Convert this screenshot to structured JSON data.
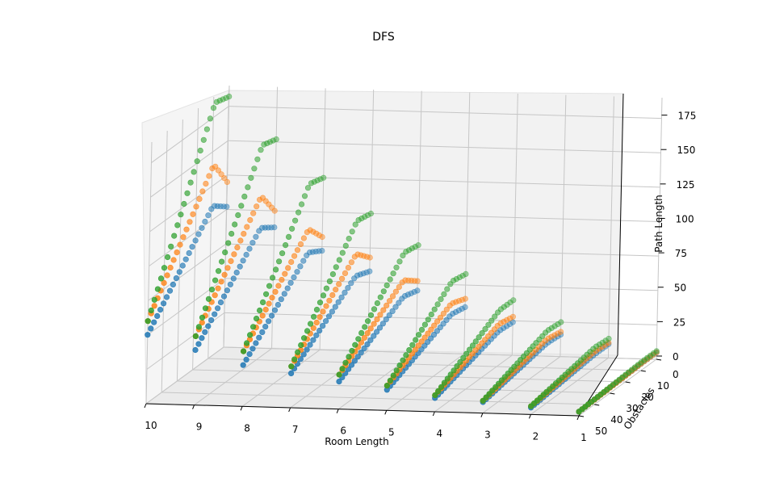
{
  "chart_data": {
    "type": "scatter3d",
    "title": "DFS",
    "xlabel": "Room Length",
    "ylabel": "Obstacles",
    "zlabel": "Path Length",
    "x_ticks": [
      "10",
      "9",
      "8",
      "7",
      "6",
      "5",
      "4",
      "3",
      "2",
      "1"
    ],
    "y_ticks": [
      "0",
      "10",
      "20",
      "30",
      "40",
      "50"
    ],
    "z_ticks": [
      "0",
      "25",
      "50",
      "75",
      "100",
      "125",
      "150",
      "175"
    ],
    "xlim": [
      1,
      10
    ],
    "ylim": [
      0,
      50
    ],
    "zlim": [
      0,
      190
    ],
    "grid": true,
    "colors": [
      "#1f77b4",
      "#ff7f0e",
      "#2ca02c"
    ],
    "series": [
      {
        "groups": [
          {
            "x": 10,
            "z_start": 50,
            "z_peak": 110,
            "z_end": 102
          },
          {
            "x": 9,
            "z_start": 40,
            "z_peak": 95,
            "z_end": 88
          },
          {
            "x": 8,
            "z_start": 30,
            "z_peak": 78,
            "z_end": 72
          },
          {
            "x": 7,
            "z_start": 25,
            "z_peak": 62,
            "z_end": 58
          },
          {
            "x": 6,
            "z_start": 20,
            "z_peak": 48,
            "z_end": 45
          },
          {
            "x": 5,
            "z_start": 15,
            "z_peak": 36,
            "z_end": 34
          },
          {
            "x": 4,
            "z_start": 10,
            "z_peak": 25,
            "z_end": 24
          },
          {
            "x": 3,
            "z_start": 8,
            "z_peak": 17,
            "z_end": 16
          },
          {
            "x": 2,
            "z_start": 5,
            "z_peak": 10,
            "z_end": 10
          },
          {
            "x": 1,
            "z_start": 3,
            "z_peak": 5,
            "z_end": 5
          }
        ]
      },
      {
        "groups": [
          {
            "x": 10,
            "z_start": 60,
            "z_peak": 140,
            "z_end": 120
          },
          {
            "x": 9,
            "z_start": 50,
            "z_peak": 118,
            "z_end": 100
          },
          {
            "x": 8,
            "z_start": 40,
            "z_peak": 95,
            "z_end": 82
          },
          {
            "x": 7,
            "z_start": 30,
            "z_peak": 78,
            "z_end": 68
          },
          {
            "x": 6,
            "z_start": 25,
            "z_peak": 60,
            "z_end": 52
          },
          {
            "x": 5,
            "z_start": 18,
            "z_peak": 44,
            "z_end": 40
          },
          {
            "x": 4,
            "z_start": 12,
            "z_peak": 30,
            "z_end": 28
          },
          {
            "x": 3,
            "z_start": 9,
            "z_peak": 20,
            "z_end": 18
          },
          {
            "x": 2,
            "z_start": 6,
            "z_peak": 12,
            "z_end": 11
          },
          {
            "x": 1,
            "z_start": 3,
            "z_peak": 5,
            "z_end": 5
          }
        ]
      },
      {
        "groups": [
          {
            "x": 10,
            "z_start": 60,
            "z_peak": 185,
            "z_end": 182
          },
          {
            "x": 9,
            "z_start": 50,
            "z_peak": 155,
            "z_end": 152
          },
          {
            "x": 8,
            "z_start": 40,
            "z_peak": 128,
            "z_end": 125
          },
          {
            "x": 7,
            "z_start": 30,
            "z_peak": 102,
            "z_end": 100
          },
          {
            "x": 6,
            "z_start": 25,
            "z_peak": 80,
            "z_end": 78
          },
          {
            "x": 5,
            "z_start": 18,
            "z_peak": 60,
            "z_end": 58
          },
          {
            "x": 4,
            "z_start": 12,
            "z_peak": 40,
            "z_end": 40
          },
          {
            "x": 3,
            "z_start": 9,
            "z_peak": 26,
            "z_end": 25
          },
          {
            "x": 2,
            "z_start": 6,
            "z_peak": 15,
            "z_end": 14
          },
          {
            "x": 1,
            "z_start": 3,
            "z_peak": 6,
            "z_end": 6
          }
        ]
      }
    ]
  }
}
